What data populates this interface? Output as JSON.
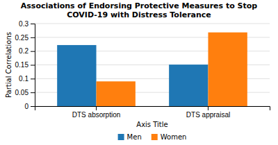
{
  "chart_data": {
    "type": "bar",
    "title": "Associations of Endorsing Protective Measures to Stop\nCOVID-19 with Distress Tolerance",
    "xlabel": "Axis Title",
    "ylabel": "Partial Correlations",
    "categories": [
      "DTS absorption",
      "DTS appraisal"
    ],
    "series": [
      {
        "name": "Men",
        "values": [
          0.222,
          0.151
        ]
      },
      {
        "name": "Women",
        "values": [
          0.09,
          0.268
        ]
      }
    ],
    "ylim": [
      0,
      0.3
    ],
    "yticks": [
      0,
      0.05,
      0.1,
      0.15,
      0.2,
      0.25,
      0.3
    ],
    "grid": true,
    "legend": "bottom"
  }
}
